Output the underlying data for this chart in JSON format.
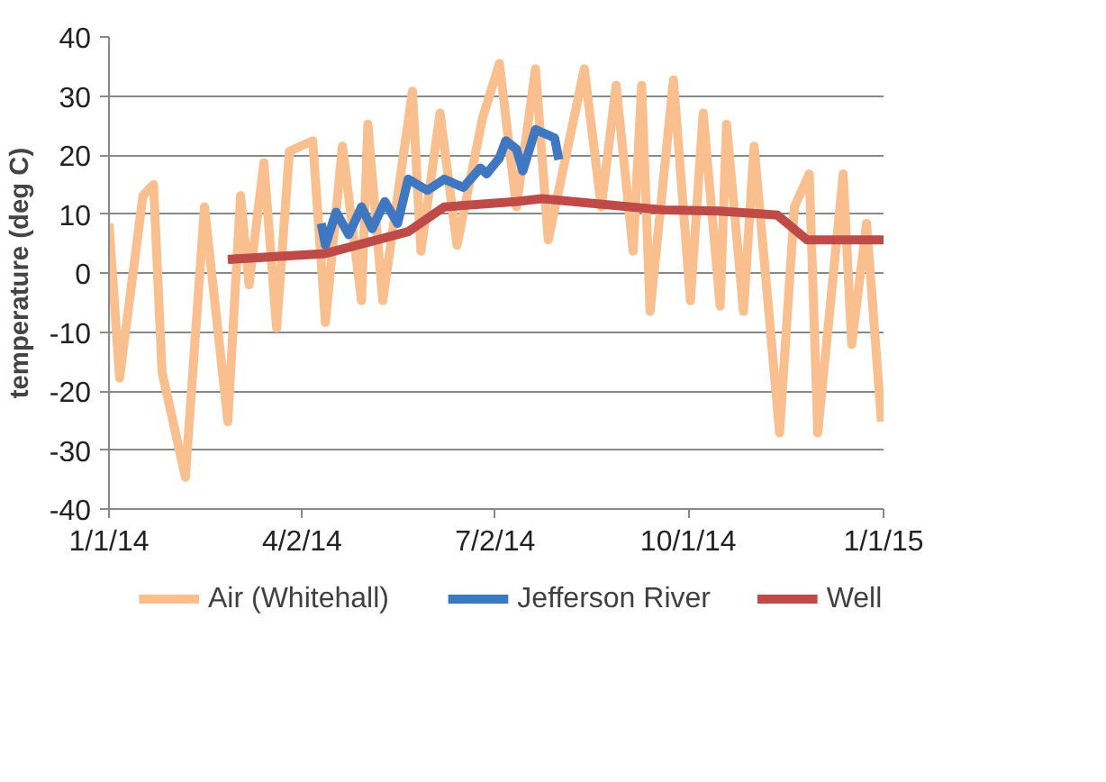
{
  "chart_data": {
    "type": "line",
    "ylabel": "temperature (deg C)",
    "xlim": [
      "2014-01-01",
      "2015-01-01"
    ],
    "xticks": [
      {
        "value": "2014-01-01",
        "label": "1/1/14"
      },
      {
        "value": "2014-04-02",
        "label": "4/2/14"
      },
      {
        "value": "2014-07-02",
        "label": "7/2/14"
      },
      {
        "value": "2014-10-01",
        "label": "10/1/14"
      },
      {
        "value": "2015-01-01",
        "label": "1/1/15"
      }
    ],
    "ylim": [
      -40,
      40
    ],
    "yticks": [
      -40,
      -30,
      -20,
      -10,
      0,
      10,
      20,
      30,
      40
    ],
    "grid": "y",
    "legend": "bottom",
    "series": [
      {
        "name": "Air (Whitehall)",
        "color": "#f9bf8f",
        "x": [
          "2014-01-01",
          "2014-01-06",
          "2014-01-17",
          "2014-01-22",
          "2014-01-26",
          "2014-02-06",
          "2014-02-15",
          "2014-02-26",
          "2014-03-04",
          "2014-03-08",
          "2014-03-15",
          "2014-03-21",
          "2014-03-27",
          "2014-04-07",
          "2014-04-13",
          "2014-04-21",
          "2014-04-30",
          "2014-05-03",
          "2014-05-10",
          "2014-05-24",
          "2014-05-28",
          "2014-06-06",
          "2014-06-14",
          "2014-06-26",
          "2014-07-04",
          "2014-07-12",
          "2014-07-21",
          "2014-07-27",
          "2014-08-13",
          "2014-08-21",
          "2014-08-28",
          "2014-09-05",
          "2014-09-09",
          "2014-09-13",
          "2014-09-24",
          "2014-10-02",
          "2014-10-08",
          "2014-10-16",
          "2014-10-19",
          "2014-10-27",
          "2014-11-01",
          "2014-11-13",
          "2014-11-20",
          "2014-11-27",
          "2014-12-01",
          "2014-12-13",
          "2014-12-17",
          "2014-12-24",
          "2014-12-31"
        ],
        "values": [
          8.4,
          -17.8,
          13.1,
          15.0,
          -16.8,
          -34.6,
          11.2,
          -25.2,
          13.1,
          -2.0,
          18.7,
          -9.3,
          20.6,
          22.4,
          -8.4,
          21.5,
          -4.7,
          25.2,
          -4.7,
          30.8,
          3.7,
          27.1,
          4.7,
          26.2,
          35.5,
          11.2,
          34.6,
          5.6,
          34.6,
          11.2,
          31.8,
          3.7,
          31.8,
          -6.5,
          32.7,
          -4.7,
          27.1,
          -5.6,
          25.2,
          -6.5,
          21.5,
          -27.1,
          11.2,
          16.8,
          -27.1,
          16.8,
          -12.1,
          8.4,
          -25.2
        ]
      },
      {
        "name": "Jefferson River",
        "color": "#3f78c0",
        "x": [
          "2014-04-11",
          "2014-04-13",
          "2014-04-18",
          "2014-04-24",
          "2014-04-30",
          "2014-05-05",
          "2014-05-11",
          "2014-05-17",
          "2014-05-22",
          "2014-05-31",
          "2014-06-08",
          "2014-06-17",
          "2014-06-25",
          "2014-06-28",
          "2014-07-04",
          "2014-07-07",
          "2014-07-12",
          "2014-07-15",
          "2014-07-21",
          "2014-07-30",
          "2014-08-01"
        ],
        "values": [
          8.4,
          4.7,
          10.3,
          6.5,
          11.2,
          7.5,
          12.1,
          8.4,
          15.9,
          14.0,
          15.9,
          14.5,
          17.8,
          16.8,
          19.5,
          22.4,
          21.0,
          17.3,
          24.3,
          22.9,
          19.2
        ]
      },
      {
        "name": "Well",
        "color": "#be4b48",
        "x": [
          "2014-02-26",
          "2014-04-13",
          "2014-05-22",
          "2014-06-08",
          "2014-07-12",
          "2014-07-24",
          "2014-09-19",
          "2014-10-15",
          "2014-11-05",
          "2014-11-12",
          "2014-11-26",
          "2015-01-01"
        ],
        "values": [
          2.3,
          3.3,
          7.0,
          11.2,
          12.1,
          12.6,
          10.7,
          10.5,
          10.0,
          9.8,
          5.6,
          5.6
        ]
      }
    ]
  }
}
